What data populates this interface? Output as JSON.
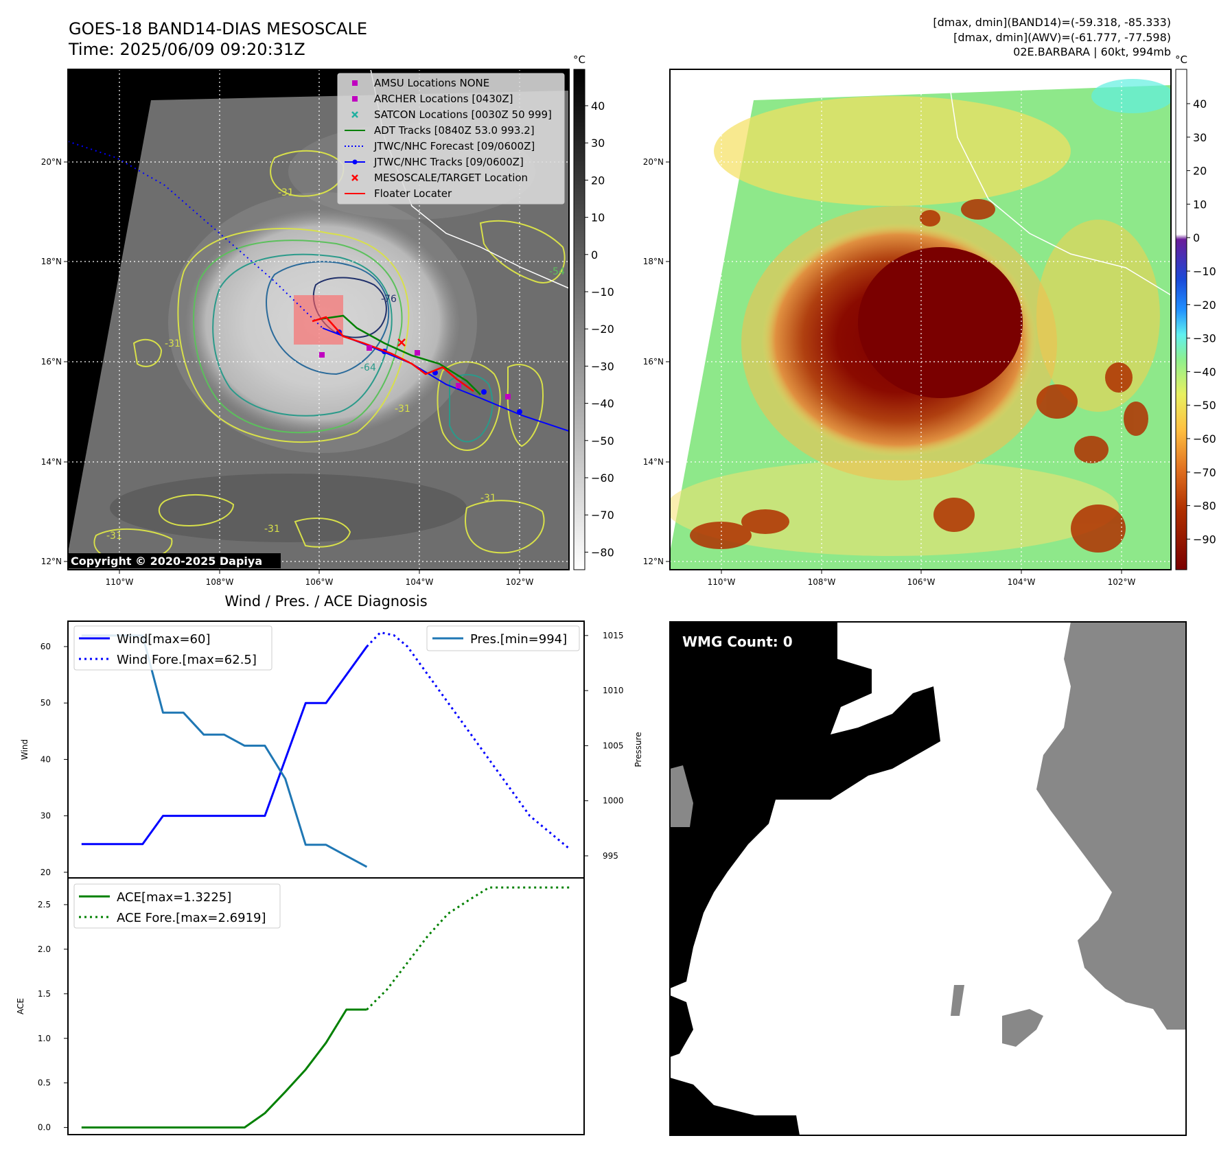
{
  "header": {
    "title_line1": "GOES-18 BAND14-DIAS MESOSCALE",
    "title_line2": "Time: 2025/06/09 09:20:31Z",
    "stats_line1": "[dmax, dmin](BAND14)=(-59.318, -85.333)",
    "stats_line2": "[dmax, dmin](AWV)=(-61.777, -77.598)",
    "stats_line3": "02E.BARBARA | 60kt, 994mb"
  },
  "map_axes": {
    "lon_ticks": [
      "110°W",
      "108°W",
      "106°W",
      "104°W",
      "102°W"
    ],
    "lat_ticks": [
      "20°N",
      "18°N",
      "16°N",
      "14°N",
      "12°N"
    ]
  },
  "ir_panel": {
    "colorbar_unit": "°C",
    "colorbar_ticks": [
      "40",
      "30",
      "20",
      "10",
      "0",
      "−10",
      "−20",
      "−30",
      "−40",
      "−50",
      "−60",
      "−70",
      "−80"
    ],
    "copyright": "Copyright © 2020-2025 Dapiya",
    "contour_labels": [
      "-31",
      "-31",
      "-31",
      "-31",
      "-54",
      "-64",
      "-76",
      "-31",
      "-31"
    ],
    "legend": [
      {
        "label": "AMSU Locations NONE",
        "kind": "square",
        "color": "#c000c0"
      },
      {
        "label": "ARCHER Locations [0430Z]",
        "kind": "square",
        "color": "#c000c0"
      },
      {
        "label": "SATCON Locations [0030Z 50 999]",
        "kind": "x",
        "color": "#20b0a0"
      },
      {
        "label": "ADT Tracks [0840Z 53.0 993.2]",
        "kind": "line",
        "color": "#008000"
      },
      {
        "label": "JTWC/NHC Forecast [09/0600Z]",
        "kind": "dotted",
        "color": "#0000ff"
      },
      {
        "label": "JTWC/NHC Tracks [09/0600Z]",
        "kind": "linedot",
        "color": "#0000ff"
      },
      {
        "label": "MESOSCALE/TARGET Location",
        "kind": "x",
        "color": "#ff0000"
      },
      {
        "label": "Floater Locater",
        "kind": "line",
        "color": "#ff0000"
      }
    ]
  },
  "awv_panel": {
    "colorbar_unit": "°C",
    "colorbar_ticks": [
      "40",
      "30",
      "20",
      "10",
      "0",
      "−10",
      "−20",
      "−30",
      "−40",
      "−50",
      "−60",
      "−70",
      "−80",
      "−90"
    ]
  },
  "diagnosis_panel": {
    "title": "Wind / Pres. / ACE Diagnosis"
  },
  "wmg_panel": {
    "label": "WMG Count: 0"
  },
  "chart_data": [
    {
      "type": "line",
      "title": "Wind / Pres. / ACE Diagnosis",
      "ylabel": "Wind",
      "y2label": "Pressure",
      "ylim": [
        19,
        64.5
      ],
      "y2lim": [
        993,
        1016.3
      ],
      "yticks": [
        20,
        30,
        40,
        50,
        60
      ],
      "y2ticks": [
        995,
        1000,
        1005,
        1010,
        1015
      ],
      "series": [
        {
          "name": "Wind[max=60]",
          "axis": "left",
          "style": "solid",
          "color": "#0000ff",
          "x": [
            0,
            6,
            9,
            12,
            15,
            18,
            21,
            24,
            27,
            30,
            33,
            36,
            39,
            42
          ],
          "values": [
            25,
            25,
            25,
            30,
            30,
            30,
            30,
            30,
            30,
            40,
            50,
            50,
            55,
            60
          ]
        },
        {
          "name": "Wind Fore.[max=62.5]",
          "axis": "left",
          "style": "dotted",
          "color": "#0000ff",
          "x": [
            42,
            44,
            46,
            48,
            51,
            54,
            57,
            60,
            63,
            66,
            69,
            72
          ],
          "values": [
            60,
            62.5,
            62,
            60,
            55,
            50,
            45,
            40,
            35,
            30,
            27,
            24
          ]
        },
        {
          "name": "Pres.[min=994]",
          "axis": "right",
          "style": "solid",
          "color": "#1f77b4",
          "x": [
            0,
            6,
            9,
            12,
            15,
            18,
            21,
            24,
            27,
            30,
            33,
            36,
            39,
            42
          ],
          "values": [
            1015,
            1015,
            1015,
            1008,
            1008,
            1006,
            1006,
            1005,
            1005,
            1002,
            996,
            996,
            995,
            994
          ]
        }
      ]
    },
    {
      "type": "line",
      "ylabel": "ACE",
      "ylim": [
        -0.08,
        2.8
      ],
      "yticks": [
        0.0,
        0.5,
        1.0,
        1.5,
        2.0,
        2.5
      ],
      "series": [
        {
          "name": "ACE[max=1.3225]",
          "style": "solid",
          "color": "#008000",
          "x": [
            0,
            6,
            9,
            12,
            15,
            18,
            21,
            24,
            27,
            30,
            33,
            36,
            39,
            42
          ],
          "values": [
            0,
            0,
            0,
            0,
            0,
            0,
            0,
            0,
            0.16,
            0.4,
            0.65,
            0.95,
            1.3225,
            1.3225
          ]
        },
        {
          "name": "ACE Fore.[max=2.6919]",
          "style": "dotted",
          "color": "#008000",
          "x": [
            42,
            45,
            48,
            51,
            54,
            57,
            60,
            63,
            66,
            69,
            72
          ],
          "values": [
            1.3225,
            1.55,
            1.85,
            2.15,
            2.4,
            2.55,
            2.6919,
            2.6919,
            2.6919,
            2.6919,
            2.6919
          ]
        }
      ]
    }
  ]
}
